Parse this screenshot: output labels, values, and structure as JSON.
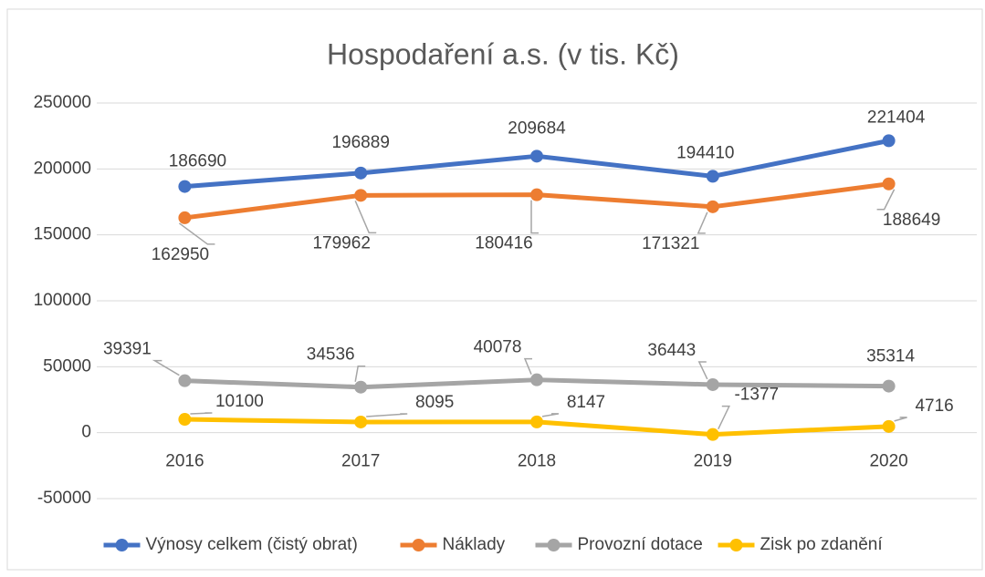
{
  "chart_data": {
    "type": "line",
    "title": "Hospodaření a.s. (v tis. Kč)",
    "categories": [
      "2016",
      "2017",
      "2018",
      "2019",
      "2020"
    ],
    "series": [
      {
        "name": "Výnosy celkem (čistý obrat)",
        "color": "#4472c4",
        "values": [
          186690,
          196889,
          209684,
          194410,
          221404
        ]
      },
      {
        "name": "Náklady",
        "color": "#ed7d31",
        "values": [
          162950,
          179962,
          180416,
          171321,
          188649
        ]
      },
      {
        "name": "Provozní dotace",
        "color": "#a5a5a5",
        "values": [
          39391,
          34536,
          40078,
          36443,
          35314
        ]
      },
      {
        "name": "Zisk po zdanění",
        "color": "#ffc000",
        "values": [
          10100,
          8095,
          8147,
          -1377,
          4716
        ]
      }
    ],
    "ylim": [
      -50000,
      250000
    ],
    "yticks": [
      -50000,
      0,
      50000,
      100000,
      150000,
      200000,
      250000
    ],
    "grid": true,
    "legend": "bottom"
  }
}
